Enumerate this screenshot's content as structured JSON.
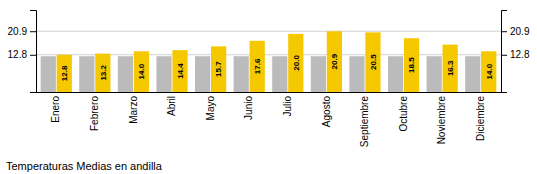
{
  "chart_data": {
    "type": "bar",
    "title": "Temperaturas Medias en andilla",
    "categories": [
      "Enero",
      "Febrero",
      "Marzo",
      "Abril",
      "Mayo",
      "Junio",
      "Julio",
      "Agosto",
      "Septiembre",
      "Octubre",
      "Noviembre",
      "Diciembre"
    ],
    "series": [
      {
        "color": "#BBBBBB",
        "values": [
          12.3,
          12.3,
          12.3,
          12.3,
          12.3,
          12.3,
          12.3,
          12.3,
          12.3,
          12.3,
          12.3,
          12.3
        ]
      },
      {
        "color": "#F5C800",
        "values": [
          12.8,
          13.2,
          14.0,
          14.4,
          15.7,
          17.6,
          20.0,
          20.9,
          20.5,
          18.5,
          16.3,
          14.0
        ],
        "value_labels": [
          "12.8",
          "13.2",
          "14.0",
          "14.4",
          "15.7",
          "17.6",
          "20.0",
          "20.9",
          "20.5",
          "18.5",
          "16.3",
          "14.0"
        ],
        "data_labels": true
      }
    ],
    "ylim": [
      0,
      28.2
    ],
    "yticks": [
      12.8,
      20.9
    ],
    "y2lim": [
      0,
      28.2
    ],
    "y2ticks": [
      12.8,
      20.9
    ],
    "grid": true
  }
}
